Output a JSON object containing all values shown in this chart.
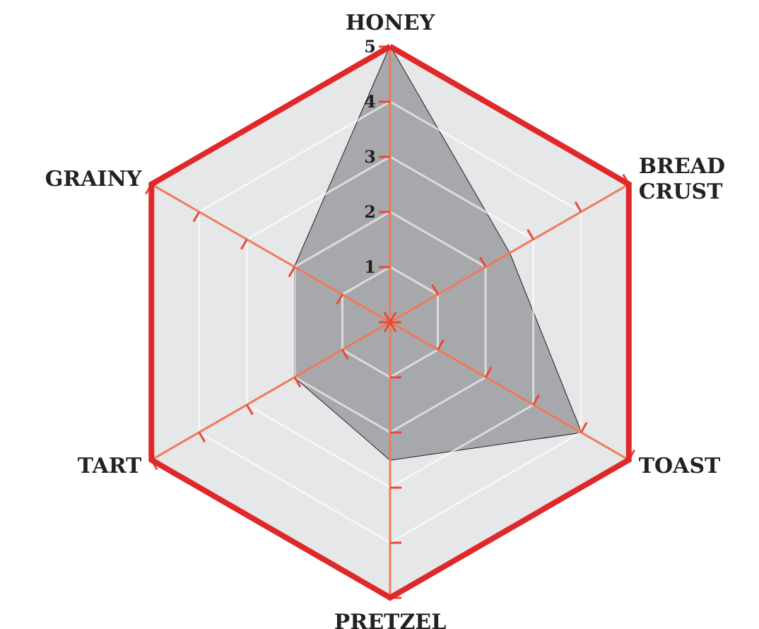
{
  "chart_data": {
    "type": "radar",
    "categories": [
      "HONEY",
      "BREAD\nCRUST",
      "TOAST",
      "PRETZEL",
      "TART",
      "GRAINY"
    ],
    "series": [
      {
        "color": "#a7a8ab",
        "values": [
          5,
          2.5,
          4,
          2.5,
          2,
          2
        ]
      }
    ],
    "ylim": [
      0,
      5
    ],
    "yticks": [
      1,
      2,
      3,
      4,
      5
    ],
    "grid": true,
    "marker": "none"
  }
}
